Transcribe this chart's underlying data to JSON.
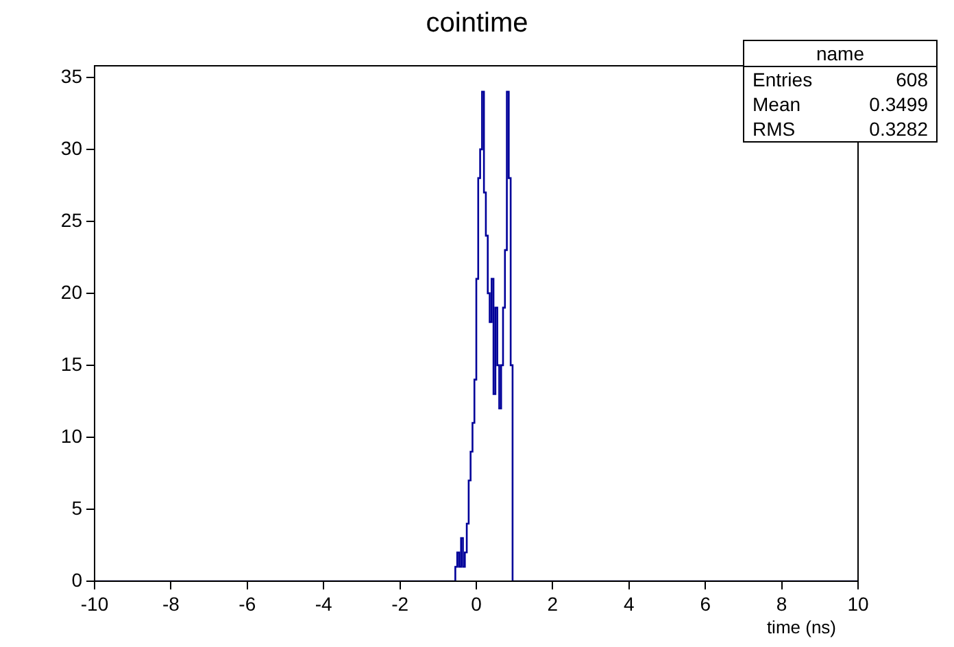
{
  "chart_data": {
    "type": "histogram",
    "title": "cointime",
    "xlabel": "time (ns)",
    "bins": [
      -10,
      -0.55,
      -0.5,
      -0.45,
      -0.4,
      -0.35,
      -0.3,
      -0.25,
      -0.2,
      -0.15,
      -0.1,
      -0.05,
      0,
      0.05,
      0.1,
      0.15,
      0.2,
      0.25,
      0.3,
      0.35,
      0.4,
      0.45,
      0.5,
      0.55,
      0.6,
      0.65,
      0.7,
      0.75,
      0.8,
      0.85,
      0.9,
      0.95,
      10
    ],
    "values": [
      0,
      1,
      2,
      1,
      3,
      1,
      2,
      4,
      7,
      9,
      11,
      14,
      21,
      28,
      30,
      34,
      27,
      24,
      20,
      18,
      21,
      13,
      19,
      15,
      12,
      15,
      19,
      23,
      34,
      28,
      15,
      0
    ],
    "color": "#000099",
    "xlim": [
      -10,
      10
    ],
    "xticks": [
      -10,
      -8,
      -6,
      -4,
      -2,
      0,
      2,
      4,
      6,
      8,
      10
    ],
    "ylim": [
      0,
      35.8
    ],
    "yticks": [
      0,
      5,
      10,
      15,
      20,
      25,
      30,
      35
    ],
    "grid": false,
    "legend": false,
    "annotations": [
      "name",
      "Entries 608",
      "Mean 0.3499",
      "RMS 0.3282"
    ]
  }
}
